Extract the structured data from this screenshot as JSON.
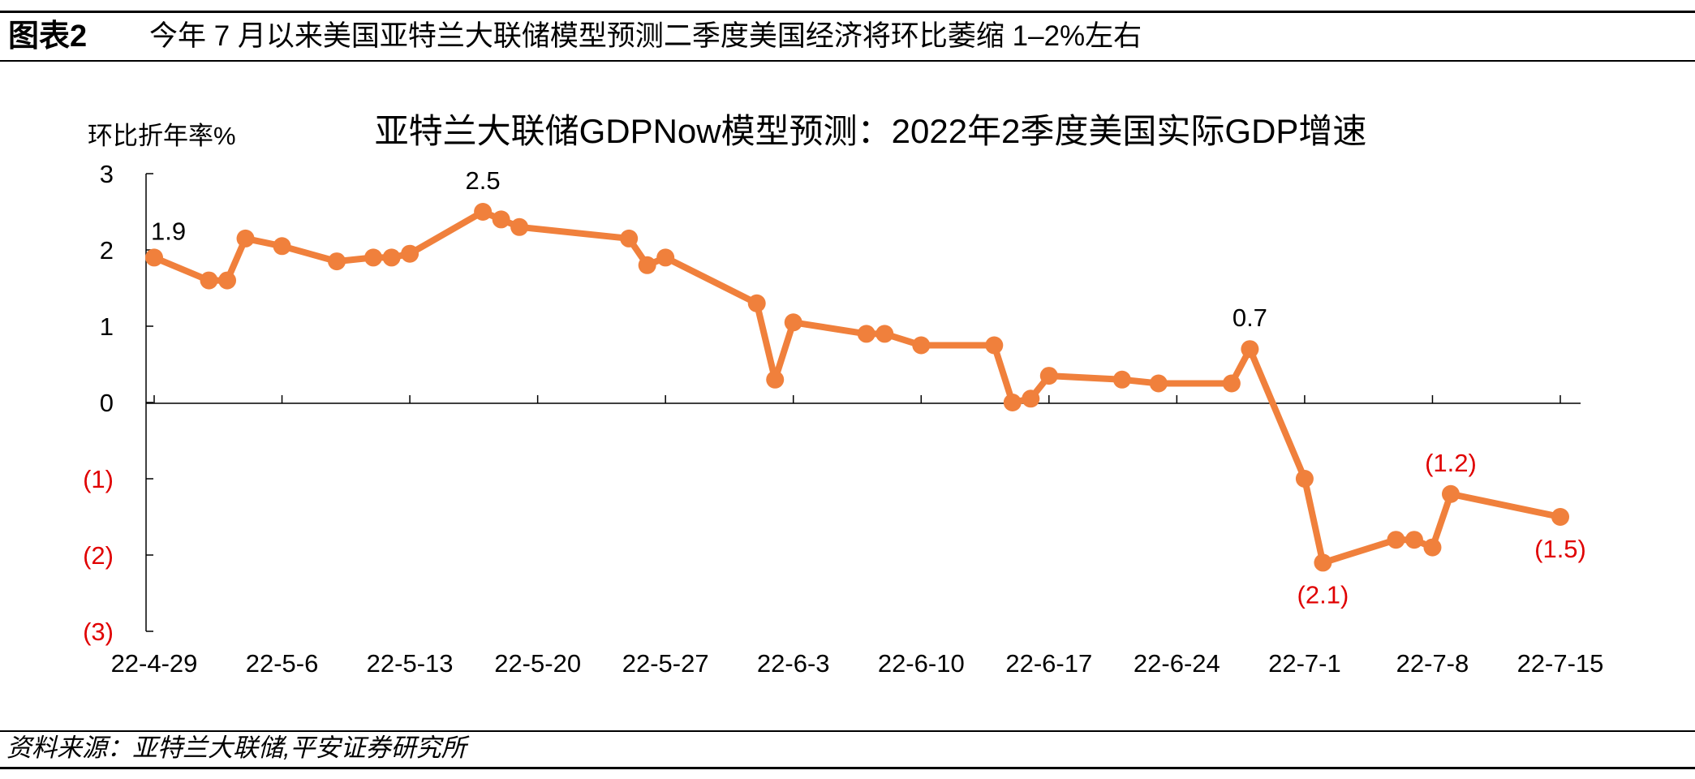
{
  "header": {
    "figure_label": "图表2",
    "caption": "今年 7 月以来美国亚特兰大联储模型预测二季度美国经济将环比萎缩 1–2%左右"
  },
  "footer": {
    "source": "资料来源：亚特兰大联储,平安证券研究所"
  },
  "colors": {
    "series": "#F0803C",
    "negative_label": "#E00000",
    "text": "#000000"
  },
  "chart_data": {
    "type": "line",
    "title": "亚特兰大联储GDPNow模型预测：2022年2季度美国实际GDP增速",
    "ylabel": "环比折年率%",
    "xlabel": "",
    "ylim": [
      -3,
      3
    ],
    "yticks": [
      {
        "value": 3,
        "label": "3"
      },
      {
        "value": 2,
        "label": "2"
      },
      {
        "value": 1,
        "label": "1"
      },
      {
        "value": 0,
        "label": "0"
      },
      {
        "value": -1,
        "label": "(1)"
      },
      {
        "value": -2,
        "label": "(2)"
      },
      {
        "value": -3,
        "label": "(3)"
      }
    ],
    "xlim": [
      "2022-04-29",
      "2022-07-15"
    ],
    "xticks": [
      {
        "date": "2022-04-29",
        "label": "22-4-29"
      },
      {
        "date": "2022-05-06",
        "label": "22-5-6"
      },
      {
        "date": "2022-05-13",
        "label": "22-5-13"
      },
      {
        "date": "2022-05-20",
        "label": "22-5-20"
      },
      {
        "date": "2022-05-27",
        "label": "22-5-27"
      },
      {
        "date": "2022-06-03",
        "label": "22-6-3"
      },
      {
        "date": "2022-06-10",
        "label": "22-6-10"
      },
      {
        "date": "2022-06-17",
        "label": "22-6-17"
      },
      {
        "date": "2022-06-24",
        "label": "22-6-24"
      },
      {
        "date": "2022-07-01",
        "label": "22-7-1"
      },
      {
        "date": "2022-07-08",
        "label": "22-7-8"
      },
      {
        "date": "2022-07-15",
        "label": "22-7-15"
      }
    ],
    "grid": false,
    "legend": "none",
    "series": [
      {
        "points": [
          {
            "x": "2022-04-29",
            "y": 1.9
          },
          {
            "x": "2022-05-02",
            "y": 1.6
          },
          {
            "x": "2022-05-03",
            "y": 1.6
          },
          {
            "x": "2022-05-04",
            "y": 2.15
          },
          {
            "x": "2022-05-06",
            "y": 2.05
          },
          {
            "x": "2022-05-09",
            "y": 1.85
          },
          {
            "x": "2022-05-11",
            "y": 1.9
          },
          {
            "x": "2022-05-12",
            "y": 1.9
          },
          {
            "x": "2022-05-13",
            "y": 1.95
          },
          {
            "x": "2022-05-17",
            "y": 2.5
          },
          {
            "x": "2022-05-18",
            "y": 2.4
          },
          {
            "x": "2022-05-19",
            "y": 2.3
          },
          {
            "x": "2022-05-25",
            "y": 2.15
          },
          {
            "x": "2022-05-26",
            "y": 1.8
          },
          {
            "x": "2022-05-27",
            "y": 1.9
          },
          {
            "x": "2022-06-01",
            "y": 1.3
          },
          {
            "x": "2022-06-02",
            "y": 0.3
          },
          {
            "x": "2022-06-03",
            "y": 1.05
          },
          {
            "x": "2022-06-07",
            "y": 0.9
          },
          {
            "x": "2022-06-08",
            "y": 0.9
          },
          {
            "x": "2022-06-10",
            "y": 0.75
          },
          {
            "x": "2022-06-14",
            "y": 0.75
          },
          {
            "x": "2022-06-15",
            "y": 0.0
          },
          {
            "x": "2022-06-16",
            "y": 0.05
          },
          {
            "x": "2022-06-17",
            "y": 0.35
          },
          {
            "x": "2022-06-21",
            "y": 0.3
          },
          {
            "x": "2022-06-23",
            "y": 0.25
          },
          {
            "x": "2022-06-27",
            "y": 0.25
          },
          {
            "x": "2022-06-28",
            "y": 0.7
          },
          {
            "x": "2022-07-01",
            "y": -1.0
          },
          {
            "x": "2022-07-02",
            "y": -2.1
          },
          {
            "x": "2022-07-06",
            "y": -1.8
          },
          {
            "x": "2022-07-07",
            "y": -1.8
          },
          {
            "x": "2022-07-08",
            "y": -1.9
          },
          {
            "x": "2022-07-09",
            "y": -1.2
          },
          {
            "x": "2022-07-15",
            "y": -1.5
          }
        ]
      }
    ],
    "annotations": [
      {
        "x": "2022-04-29",
        "y": 1.9,
        "text": "1.9",
        "pos": "above-right",
        "color": "#000000"
      },
      {
        "x": "2022-05-17",
        "y": 2.5,
        "text": "2.5",
        "pos": "above",
        "color": "#000000"
      },
      {
        "x": "2022-06-28",
        "y": 0.7,
        "text": "0.7",
        "pos": "above",
        "color": "#000000"
      },
      {
        "x": "2022-07-02",
        "y": -2.1,
        "text": "(2.1)",
        "pos": "below",
        "color": "#E00000"
      },
      {
        "x": "2022-07-09",
        "y": -1.2,
        "text": "(1.2)",
        "pos": "above",
        "color": "#E00000"
      },
      {
        "x": "2022-07-15",
        "y": -1.5,
        "text": "(1.5)",
        "pos": "below",
        "color": "#E00000"
      }
    ]
  }
}
